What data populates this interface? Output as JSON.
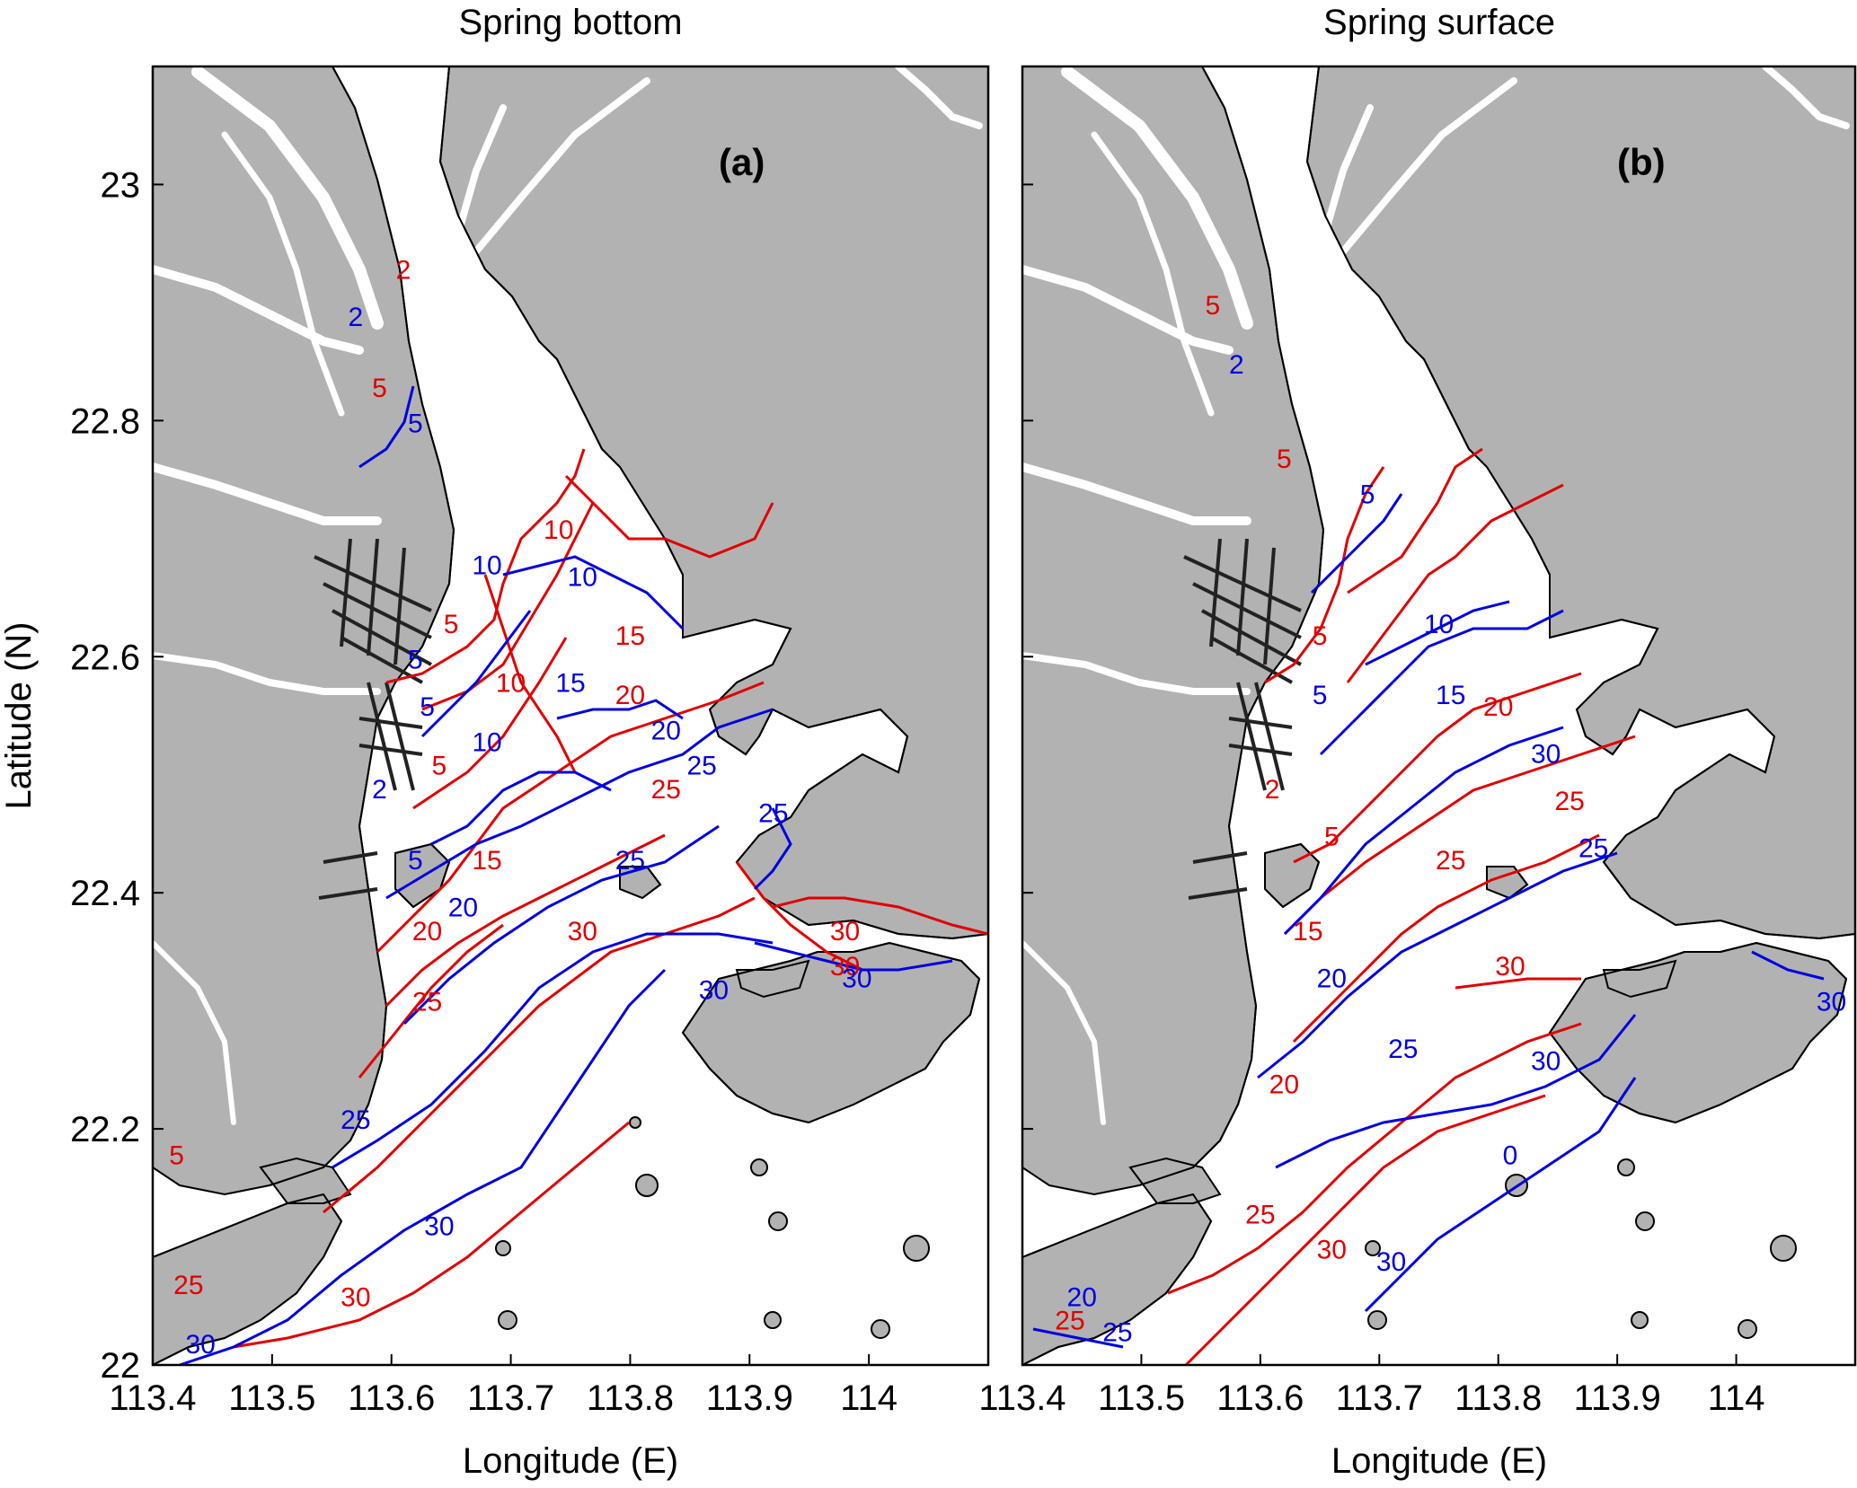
{
  "colors": {
    "land": "#b2b2b2",
    "water": "#ffffff",
    "coast": "#000000",
    "contour_set_1": "#e00000",
    "contour_set_2": "#0000e0"
  },
  "axes": {
    "xlabel": "Longitude (E)",
    "ylabel": "Latitude (N)",
    "x_ticks": [
      "113.4",
      "113.5",
      "113.6",
      "113.7",
      "113.8",
      "113.9",
      "114"
    ],
    "y_ticks": [
      "22",
      "22.2",
      "22.4",
      "22.6",
      "22.8",
      "23"
    ],
    "xlim": [
      113.4,
      114.1
    ],
    "ylim": [
      22.0,
      23.1
    ]
  },
  "panels": [
    {
      "title": "Spring bottom",
      "label": "(a)",
      "red_labels": [
        {
          "text": "2",
          "lon": 113.61,
          "lat": 22.92
        },
        {
          "text": "5",
          "lon": 113.59,
          "lat": 22.82
        },
        {
          "text": "10",
          "lon": 113.74,
          "lat": 22.7
        },
        {
          "text": "5",
          "lon": 113.65,
          "lat": 22.62
        },
        {
          "text": "15",
          "lon": 113.8,
          "lat": 22.61
        },
        {
          "text": "10",
          "lon": 113.7,
          "lat": 22.57
        },
        {
          "text": "20",
          "lon": 113.8,
          "lat": 22.56
        },
        {
          "text": "5",
          "lon": 113.64,
          "lat": 22.5
        },
        {
          "text": "25",
          "lon": 113.83,
          "lat": 22.48
        },
        {
          "text": "15",
          "lon": 113.68,
          "lat": 22.42
        },
        {
          "text": "20",
          "lon": 113.63,
          "lat": 22.36
        },
        {
          "text": "30",
          "lon": 113.76,
          "lat": 22.36
        },
        {
          "text": "30",
          "lon": 113.98,
          "lat": 22.36
        },
        {
          "text": "25",
          "lon": 113.63,
          "lat": 22.3
        },
        {
          "text": "30",
          "lon": 113.98,
          "lat": 22.33
        },
        {
          "text": "5",
          "lon": 113.42,
          "lat": 22.17
        },
        {
          "text": "30",
          "lon": 113.57,
          "lat": 22.05
        },
        {
          "text": "25",
          "lon": 113.43,
          "lat": 22.06
        }
      ],
      "blue_labels": [
        {
          "text": "2",
          "lon": 113.57,
          "lat": 22.88
        },
        {
          "text": "5",
          "lon": 113.62,
          "lat": 22.79
        },
        {
          "text": "10",
          "lon": 113.68,
          "lat": 22.67
        },
        {
          "text": "10",
          "lon": 113.76,
          "lat": 22.66
        },
        {
          "text": "5",
          "lon": 113.62,
          "lat": 22.59
        },
        {
          "text": "15",
          "lon": 113.75,
          "lat": 22.57
        },
        {
          "text": "20",
          "lon": 113.83,
          "lat": 22.53
        },
        {
          "text": "5",
          "lon": 113.63,
          "lat": 22.55
        },
        {
          "text": "2",
          "lon": 113.59,
          "lat": 22.48
        },
        {
          "text": "10",
          "lon": 113.68,
          "lat": 22.52
        },
        {
          "text": "25",
          "lon": 113.86,
          "lat": 22.5
        },
        {
          "text": "25",
          "lon": 113.92,
          "lat": 22.46
        },
        {
          "text": "25",
          "lon": 113.8,
          "lat": 22.42
        },
        {
          "text": "5",
          "lon": 113.62,
          "lat": 22.42
        },
        {
          "text": "20",
          "lon": 113.66,
          "lat": 22.38
        },
        {
          "text": "30",
          "lon": 113.99,
          "lat": 22.32
        },
        {
          "text": "30",
          "lon": 113.87,
          "lat": 22.31
        },
        {
          "text": "25",
          "lon": 113.57,
          "lat": 22.2
        },
        {
          "text": "30",
          "lon": 113.64,
          "lat": 22.11
        },
        {
          "text": "30",
          "lon": 113.44,
          "lat": 22.01
        }
      ]
    },
    {
      "title": "Spring surface",
      "label": "(b)",
      "red_labels": [
        {
          "text": "5",
          "lon": 113.56,
          "lat": 22.89
        },
        {
          "text": "5",
          "lon": 113.62,
          "lat": 22.76
        },
        {
          "text": "5",
          "lon": 113.65,
          "lat": 22.61
        },
        {
          "text": "20",
          "lon": 113.8,
          "lat": 22.55
        },
        {
          "text": "25",
          "lon": 113.86,
          "lat": 22.47
        },
        {
          "text": "2",
          "lon": 113.61,
          "lat": 22.48
        },
        {
          "text": "5",
          "lon": 113.66,
          "lat": 22.44
        },
        {
          "text": "25",
          "lon": 113.76,
          "lat": 22.42
        },
        {
          "text": "15",
          "lon": 113.64,
          "lat": 22.36
        },
        {
          "text": "30",
          "lon": 113.81,
          "lat": 22.33
        },
        {
          "text": "20",
          "lon": 113.62,
          "lat": 22.23
        },
        {
          "text": "25",
          "lon": 113.6,
          "lat": 22.12
        },
        {
          "text": "30",
          "lon": 113.66,
          "lat": 22.09
        },
        {
          "text": "25",
          "lon": 113.44,
          "lat": 22.03
        }
      ],
      "blue_labels": [
        {
          "text": "2",
          "lon": 113.58,
          "lat": 22.84
        },
        {
          "text": "5",
          "lon": 113.69,
          "lat": 22.73
        },
        {
          "text": "10",
          "lon": 113.75,
          "lat": 22.62
        },
        {
          "text": "5",
          "lon": 113.65,
          "lat": 22.56
        },
        {
          "text": "15",
          "lon": 113.76,
          "lat": 22.56
        },
        {
          "text": "30",
          "lon": 113.84,
          "lat": 22.51
        },
        {
          "text": "25",
          "lon": 113.88,
          "lat": 22.43
        },
        {
          "text": "20",
          "lon": 113.66,
          "lat": 22.32
        },
        {
          "text": "25",
          "lon": 113.72,
          "lat": 22.26
        },
        {
          "text": "30",
          "lon": 113.84,
          "lat": 22.25
        },
        {
          "text": "30",
          "lon": 114.08,
          "lat": 22.3
        },
        {
          "text": "0",
          "lon": 113.81,
          "lat": 22.17
        },
        {
          "text": "30",
          "lon": 113.71,
          "lat": 22.08
        },
        {
          "text": "20",
          "lon": 113.45,
          "lat": 22.05
        },
        {
          "text": "25",
          "lon": 113.48,
          "lat": 22.02
        }
      ]
    }
  ]
}
